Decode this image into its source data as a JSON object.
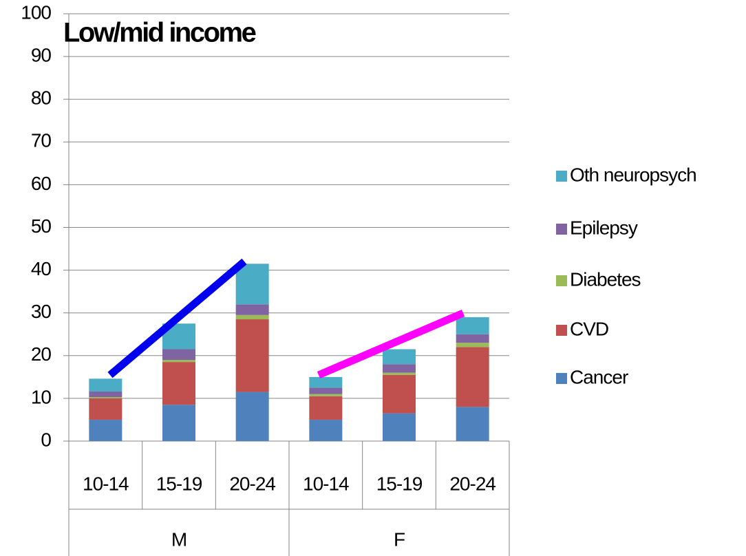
{
  "chart_data": {
    "type": "stacked_bar",
    "title": "Low/mid income",
    "categories": [
      "10-14",
      "15-19",
      "20-24",
      "10-14",
      "15-19",
      "20-24"
    ],
    "groups": [
      "M",
      "F"
    ],
    "series": [
      {
        "name": "Cancer",
        "color": "#4f81bd",
        "values": [
          5,
          8.5,
          11.5,
          5,
          6.5,
          8
        ]
      },
      {
        "name": "CVD",
        "color": "#c0504d",
        "values": [
          5,
          10,
          17,
          5.5,
          9,
          14
        ]
      },
      {
        "name": "Diabetes",
        "color": "#9bbb59",
        "values": [
          0.3,
          0.5,
          1,
          0.5,
          0.5,
          1
        ]
      },
      {
        "name": "Epilepsy",
        "color": "#8064a2",
        "values": [
          1.3,
          2.5,
          2.5,
          1.5,
          2,
          2
        ]
      },
      {
        "name": "Oth neuropsych",
        "color": "#4bacc6",
        "values": [
          3,
          6,
          9.5,
          2.5,
          3.5,
          4
        ]
      }
    ],
    "ylim": [
      0,
      100
    ],
    "yticks": [
      0,
      10,
      20,
      30,
      40,
      50,
      60,
      70,
      80,
      90,
      100
    ],
    "grid": true
  }
}
